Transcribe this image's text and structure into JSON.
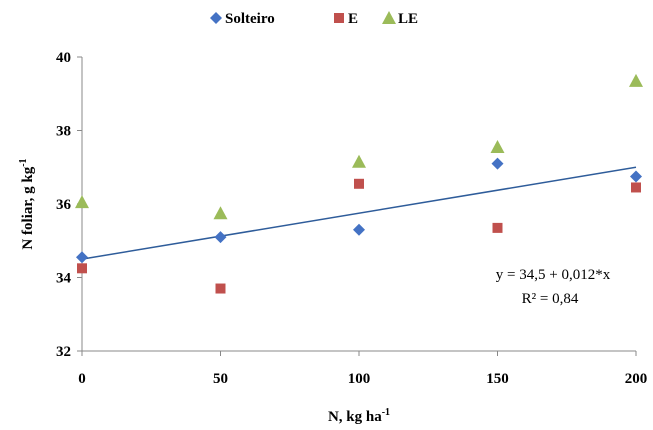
{
  "chart_data": {
    "type": "scatter",
    "title": "",
    "xlabel": "N, kg ha",
    "xlabel_sup": "-1",
    "ylabel": "N foliar, g kg",
    "ylabel_sup": "-1",
    "xlim": [
      0,
      200
    ],
    "ylim": [
      32,
      40
    ],
    "xticks": [
      0,
      50,
      100,
      150,
      200
    ],
    "yticks": [
      32,
      34,
      36,
      38,
      40
    ],
    "grid": false,
    "legend_position": "top-center",
    "x": [
      0,
      50,
      100,
      150,
      200
    ],
    "series": [
      {
        "name": "Solteiro",
        "marker": "diamond",
        "color": "#4472C4",
        "values": [
          34.55,
          35.1,
          35.3,
          37.1,
          36.75
        ]
      },
      {
        "name": "E",
        "marker": "square",
        "color": "#C0504D",
        "values": [
          34.25,
          33.7,
          36.55,
          35.35,
          36.45
        ]
      },
      {
        "name": "LE",
        "marker": "triangle",
        "color": "#9BBB59",
        "values": [
          36.05,
          35.75,
          37.15,
          37.55,
          39.35
        ]
      }
    ],
    "trendline": {
      "series": "Solteiro",
      "intercept": 34.5,
      "slope": 0.0125,
      "color": "#2E5C9A",
      "equation": "y = 34,5 + 0,012*x",
      "r2": "R² = 0,84"
    }
  }
}
